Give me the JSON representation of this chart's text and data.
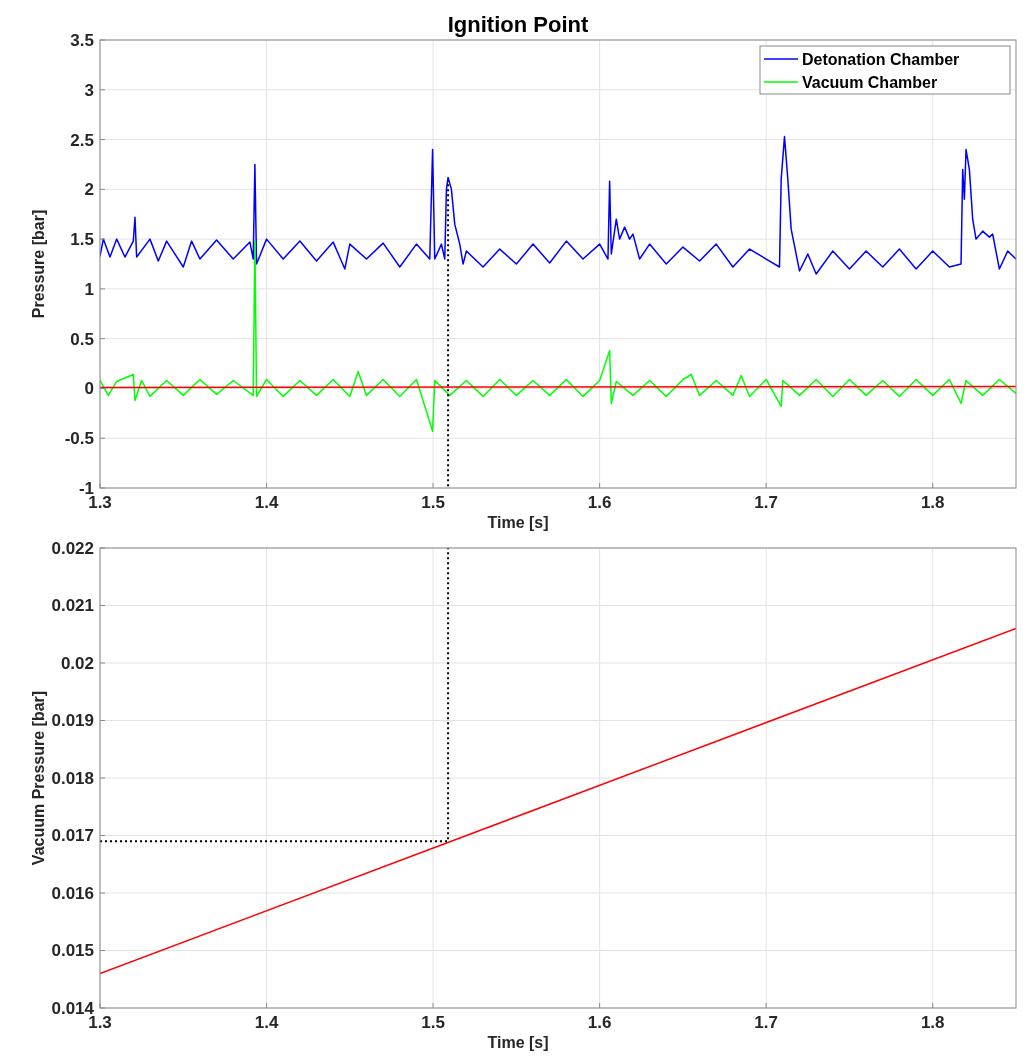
{
  "chart_data": [
    {
      "type": "line",
      "title": "Ignition Point",
      "xlabel": "Time [s]",
      "ylabel": "Pressure [bar]",
      "xlim": [
        1.3,
        1.85
      ],
      "xticks": [
        1.3,
        1.4,
        1.5,
        1.6,
        1.7,
        1.8
      ],
      "ylim": [
        -1,
        3.5
      ],
      "yticks": [
        -1,
        -0.5,
        0,
        0.5,
        1,
        1.5,
        2,
        2.5,
        3,
        3.5
      ],
      "grid": true,
      "legend": "top right",
      "series": [
        {
          "name": "Detonation Chamber",
          "color": "#0000ff",
          "x": [
            1.3,
            1.302,
            1.306,
            1.31,
            1.315,
            1.32,
            1.321,
            1.322,
            1.33,
            1.335,
            1.34,
            1.35,
            1.355,
            1.36,
            1.37,
            1.38,
            1.39,
            1.392,
            1.393,
            1.394,
            1.4,
            1.41,
            1.42,
            1.43,
            1.44,
            1.447,
            1.45,
            1.46,
            1.47,
            1.48,
            1.49,
            1.498,
            1.4997,
            1.501,
            1.505,
            1.507,
            1.508,
            1.509,
            1.511,
            1.513,
            1.516,
            1.518,
            1.52,
            1.53,
            1.54,
            1.55,
            1.56,
            1.57,
            1.58,
            1.59,
            1.6,
            1.605,
            1.606,
            1.607,
            1.61,
            1.612,
            1.615,
            1.618,
            1.62,
            1.624,
            1.63,
            1.64,
            1.65,
            1.66,
            1.67,
            1.68,
            1.69,
            1.7,
            1.708,
            1.709,
            1.711,
            1.713,
            1.715,
            1.72,
            1.725,
            1.73,
            1.74,
            1.75,
            1.76,
            1.77,
            1.78,
            1.79,
            1.8,
            1.81,
            1.817,
            1.818,
            1.819,
            1.82,
            1.822,
            1.824,
            1.826,
            1.83,
            1.834,
            1.836,
            1.84,
            1.845,
            1.85
          ],
          "values": [
            1.33,
            1.5,
            1.32,
            1.5,
            1.32,
            1.48,
            1.72,
            1.32,
            1.5,
            1.28,
            1.48,
            1.22,
            1.48,
            1.3,
            1.49,
            1.3,
            1.47,
            1.3,
            2.25,
            1.25,
            1.5,
            1.3,
            1.48,
            1.28,
            1.47,
            1.2,
            1.45,
            1.3,
            1.46,
            1.22,
            1.45,
            1.3,
            2.4,
            1.3,
            1.45,
            1.3,
            2.0,
            2.12,
            2.0,
            1.65,
            1.45,
            1.25,
            1.38,
            1.22,
            1.4,
            1.25,
            1.45,
            1.26,
            1.48,
            1.3,
            1.45,
            1.3,
            2.08,
            1.35,
            1.7,
            1.5,
            1.62,
            1.5,
            1.55,
            1.3,
            1.45,
            1.25,
            1.42,
            1.28,
            1.45,
            1.22,
            1.4,
            1.3,
            1.22,
            2.1,
            2.53,
            2.1,
            1.6,
            1.18,
            1.35,
            1.15,
            1.38,
            1.2,
            1.38,
            1.22,
            1.4,
            1.2,
            1.38,
            1.22,
            1.25,
            2.2,
            1.9,
            2.4,
            2.2,
            1.7,
            1.5,
            1.58,
            1.52,
            1.55,
            1.2,
            1.38,
            1.3
          ]
        },
        {
          "name": "Vacuum Chamber",
          "color": "#00ff00",
          "x": [
            1.3,
            1.305,
            1.31,
            1.32,
            1.321,
            1.325,
            1.33,
            1.34,
            1.35,
            1.36,
            1.37,
            1.38,
            1.392,
            1.393,
            1.394,
            1.4,
            1.41,
            1.42,
            1.43,
            1.44,
            1.45,
            1.455,
            1.46,
            1.47,
            1.48,
            1.49,
            1.4997,
            1.501,
            1.51,
            1.52,
            1.53,
            1.54,
            1.55,
            1.56,
            1.57,
            1.58,
            1.59,
            1.6,
            1.606,
            1.607,
            1.61,
            1.62,
            1.63,
            1.64,
            1.65,
            1.655,
            1.66,
            1.67,
            1.68,
            1.685,
            1.69,
            1.7,
            1.709,
            1.71,
            1.72,
            1.73,
            1.74,
            1.75,
            1.76,
            1.77,
            1.78,
            1.79,
            1.8,
            1.81,
            1.817,
            1.82,
            1.83,
            1.84,
            1.85
          ],
          "values": [
            0.08,
            -0.07,
            0.07,
            0.14,
            -0.12,
            0.08,
            -0.08,
            0.08,
            -0.07,
            0.09,
            -0.06,
            0.08,
            -0.07,
            1.48,
            -0.08,
            0.09,
            -0.08,
            0.08,
            -0.07,
            0.09,
            -0.08,
            0.17,
            -0.07,
            0.09,
            -0.08,
            0.09,
            -0.43,
            0.08,
            -0.07,
            0.08,
            -0.08,
            0.09,
            -0.07,
            0.08,
            -0.07,
            0.09,
            -0.08,
            0.08,
            0.38,
            -0.15,
            0.07,
            -0.07,
            0.08,
            -0.08,
            0.09,
            0.14,
            -0.07,
            0.08,
            -0.07,
            0.13,
            -0.08,
            0.09,
            -0.18,
            0.08,
            -0.07,
            0.09,
            -0.08,
            0.09,
            -0.07,
            0.08,
            -0.08,
            0.09,
            -0.07,
            0.09,
            -0.15,
            0.08,
            -0.07,
            0.09,
            -0.05
          ]
        },
        {
          "color": "#ff0000",
          "x": [
            1.3,
            1.85
          ],
          "values": [
            0.01,
            0.02
          ]
        },
        {
          "color": "#000000",
          "line_style": "dotted",
          "x": [
            1.509,
            1.509
          ],
          "values": [
            2.05,
            -1
          ]
        }
      ]
    },
    {
      "type": "line",
      "xlabel": "Time [s]",
      "ylabel": "Vacuum Pressure [bar]",
      "xlim": [
        1.3,
        1.85
      ],
      "xticks": [
        1.3,
        1.4,
        1.5,
        1.6,
        1.7,
        1.8
      ],
      "ylim": [
        0.014,
        0.022
      ],
      "yticks": [
        0.014,
        0.015,
        0.016,
        0.017,
        0.018,
        0.019,
        0.02,
        0.021,
        0.022
      ],
      "grid": true,
      "series": [
        {
          "color": "#ff0000",
          "x": [
            1.3,
            1.85
          ],
          "values": [
            0.0146,
            0.0206
          ]
        },
        {
          "color": "#000000",
          "line_style": "dotted",
          "x": [
            1.3,
            1.509,
            1.509
          ],
          "values": [
            0.0169,
            0.0169,
            0.022
          ]
        }
      ]
    }
  ]
}
